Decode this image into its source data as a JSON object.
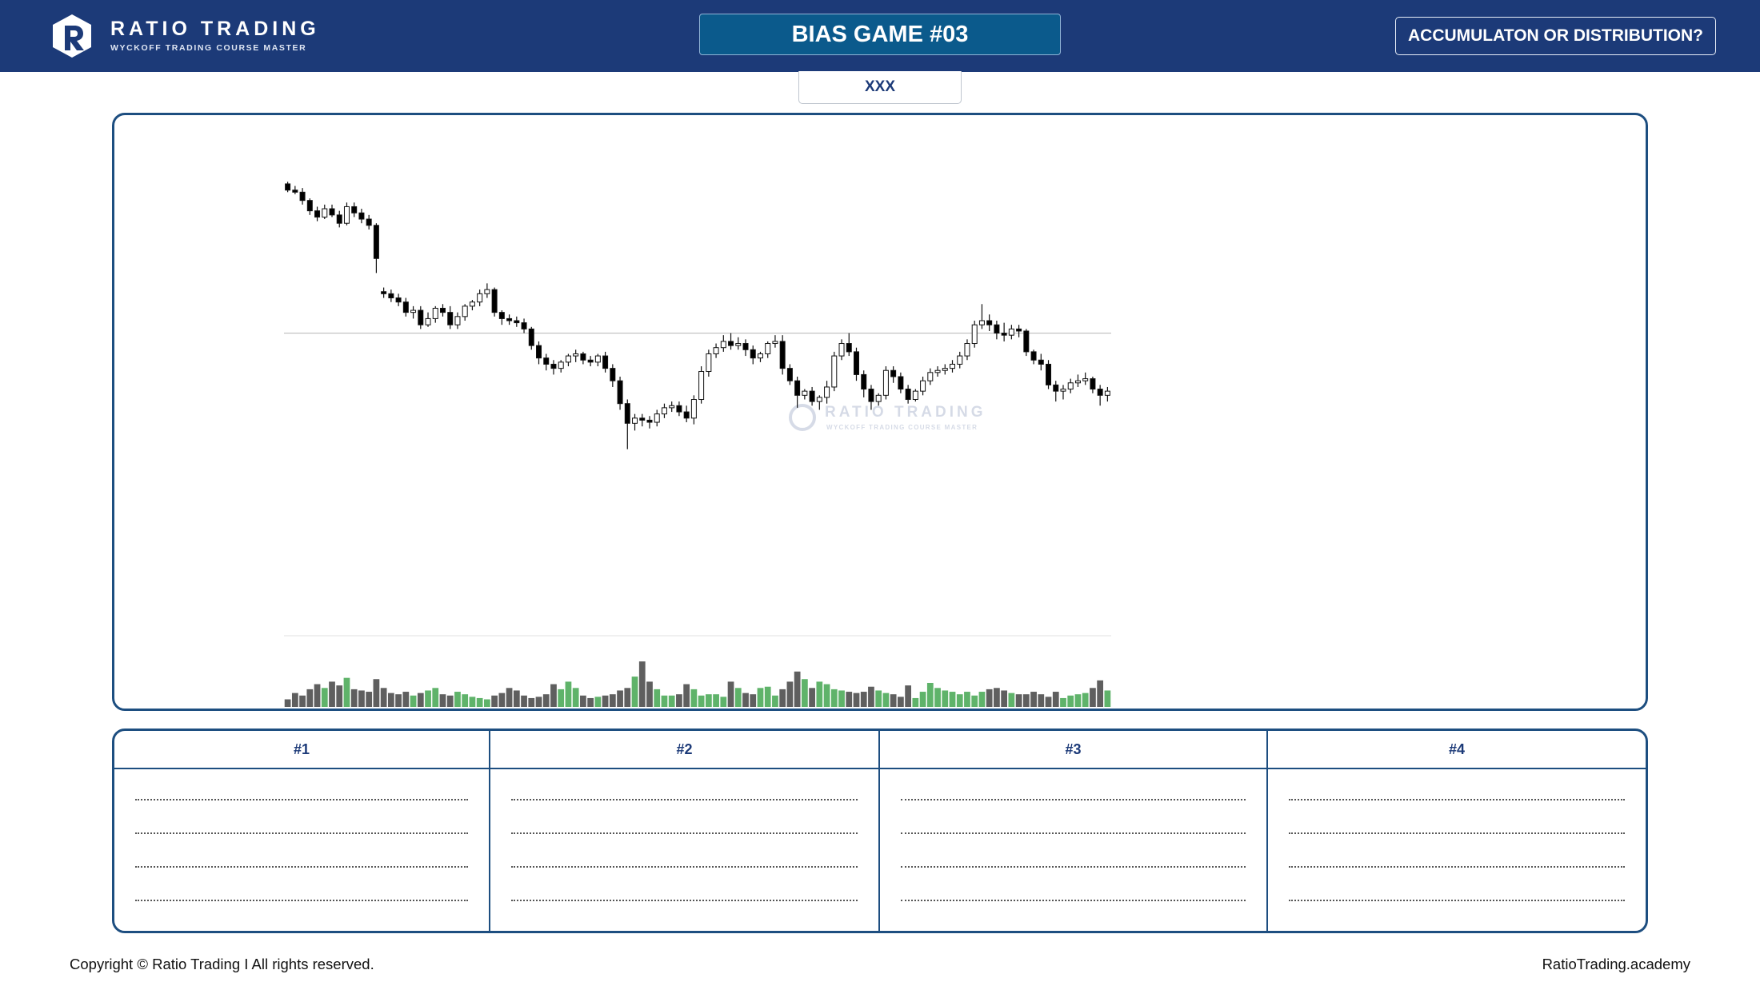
{
  "header": {
    "brand": "RATIO TRADING",
    "tagline": "WYCKOFF TRADING COURSE MASTER",
    "title": "BIAS GAME #03",
    "question": "ACCUMULATON OR DISTRIBUTION?"
  },
  "tab": "XXX",
  "chart_data": {
    "type": "candlestick",
    "watermark": {
      "brand": "RATIO TRADING",
      "tagline": "WYCKOFF TRADING COURSE MASTER"
    },
    "ylim": [
      0,
      500
    ],
    "volume_ylim": [
      0,
      100
    ],
    "reference_line": 292,
    "up_color": "#ffffff",
    "down_color": "#000000",
    "wick_color": "#111111",
    "volume_up_color": "#5fb36a",
    "volume_down_color": "#5f5f5f",
    "open": [
      436,
      430,
      428,
      420,
      410,
      404,
      412,
      406,
      398,
      414,
      408,
      402,
      396,
      332,
      330,
      326,
      322,
      312,
      314,
      300,
      306,
      316,
      312,
      300,
      308,
      318,
      322,
      330,
      334,
      312,
      306,
      304,
      302,
      296,
      280,
      268,
      262,
      258,
      264,
      270,
      272,
      266,
      264,
      270,
      258,
      246,
      224,
      205,
      210,
      208,
      206,
      214,
      220,
      222,
      216,
      210,
      228,
      255,
      272,
      278,
      284,
      280,
      282,
      276,
      268,
      272,
      282,
      284,
      258,
      246,
      232,
      236,
      226,
      230,
      240,
      270,
      282,
      274,
      252,
      238,
      226,
      232,
      256,
      250,
      238,
      228,
      236,
      246,
      254,
      256,
      258,
      262,
      270,
      282,
      300,
      304,
      300,
      292,
      290,
      296,
      294,
      274,
      266,
      262,
      242,
      236,
      238,
      244,
      246,
      248,
      238,
      232
    ],
    "high": [
      438,
      434,
      432,
      422,
      414,
      416,
      416,
      410,
      418,
      418,
      412,
      406,
      398,
      336,
      334,
      330,
      326,
      318,
      318,
      312,
      318,
      320,
      318,
      312,
      320,
      324,
      334,
      340,
      336,
      314,
      310,
      308,
      306,
      298,
      284,
      272,
      266,
      266,
      272,
      276,
      274,
      270,
      272,
      274,
      262,
      250,
      228,
      214,
      214,
      212,
      218,
      224,
      226,
      226,
      222,
      232,
      260,
      276,
      282,
      290,
      292,
      288,
      286,
      280,
      274,
      284,
      290,
      290,
      262,
      250,
      238,
      240,
      232,
      246,
      274,
      286,
      292,
      278,
      256,
      242,
      234,
      260,
      260,
      254,
      242,
      238,
      250,
      258,
      260,
      262,
      266,
      274,
      286,
      304,
      320,
      310,
      304,
      302,
      300,
      300,
      296,
      276,
      272,
      266,
      246,
      242,
      248,
      252,
      254,
      250,
      242,
      240
    ],
    "low": [
      428,
      426,
      416,
      406,
      400,
      402,
      404,
      394,
      396,
      404,
      398,
      392,
      350,
      326,
      322,
      318,
      308,
      306,
      296,
      298,
      302,
      308,
      296,
      296,
      304,
      314,
      318,
      326,
      308,
      300,
      300,
      298,
      292,
      276,
      262,
      256,
      252,
      254,
      260,
      264,
      262,
      260,
      260,
      254,
      240,
      218,
      180,
      198,
      202,
      200,
      202,
      210,
      216,
      212,
      206,
      204,
      224,
      250,
      268,
      274,
      276,
      276,
      270,
      262,
      264,
      268,
      278,
      252,
      242,
      220,
      228,
      222,
      218,
      224,
      236,
      266,
      270,
      246,
      230,
      218,
      222,
      228,
      244,
      234,
      224,
      226,
      232,
      242,
      250,
      252,
      254,
      258,
      266,
      278,
      296,
      294,
      286,
      284,
      286,
      288,
      270,
      262,
      256,
      238,
      226,
      228,
      234,
      240,
      242,
      234,
      222,
      226
    ],
    "close": [
      430,
      428,
      420,
      410,
      404,
      412,
      406,
      398,
      414,
      408,
      402,
      396,
      364,
      330,
      326,
      322,
      312,
      314,
      300,
      306,
      316,
      312,
      300,
      308,
      318,
      322,
      330,
      334,
      312,
      306,
      304,
      302,
      296,
      280,
      268,
      262,
      258,
      264,
      270,
      272,
      266,
      264,
      270,
      258,
      246,
      224,
      205,
      210,
      208,
      206,
      214,
      220,
      222,
      216,
      210,
      228,
      255,
      272,
      278,
      284,
      280,
      282,
      276,
      268,
      272,
      282,
      284,
      258,
      246,
      232,
      236,
      226,
      230,
      240,
      270,
      282,
      274,
      252,
      238,
      226,
      232,
      256,
      250,
      238,
      228,
      236,
      246,
      254,
      256,
      258,
      262,
      270,
      282,
      300,
      304,
      300,
      292,
      290,
      296,
      294,
      274,
      266,
      262,
      242,
      236,
      238,
      244,
      246,
      248,
      238,
      232,
      236
    ],
    "volume": [
      12,
      22,
      18,
      28,
      36,
      30,
      40,
      34,
      46,
      28,
      26,
      24,
      44,
      30,
      22,
      20,
      24,
      18,
      22,
      26,
      30,
      20,
      18,
      24,
      20,
      16,
      14,
      12,
      18,
      22,
      30,
      26,
      18,
      14,
      16,
      20,
      36,
      28,
      40,
      30,
      18,
      14,
      16,
      18,
      20,
      26,
      30,
      48,
      72,
      40,
      28,
      18,
      18,
      20,
      36,
      28,
      18,
      20,
      20,
      16,
      40,
      30,
      22,
      20,
      30,
      32,
      18,
      28,
      40,
      56,
      44,
      30,
      40,
      36,
      28,
      26,
      24,
      22,
      24,
      32,
      26,
      22,
      20,
      16,
      34,
      14,
      24,
      38,
      30,
      26,
      24,
      20,
      24,
      18,
      24,
      28,
      30,
      26,
      22,
      20,
      20,
      24,
      20,
      16,
      24,
      14,
      18,
      20,
      22,
      30,
      42,
      26
    ]
  },
  "table": {
    "columns": [
      "#1",
      "#2",
      "#3",
      "#4"
    ]
  },
  "footer": {
    "copyright": "Copyright © Ratio Trading I All rights reserved.",
    "website": "RatioTrading.academy"
  }
}
